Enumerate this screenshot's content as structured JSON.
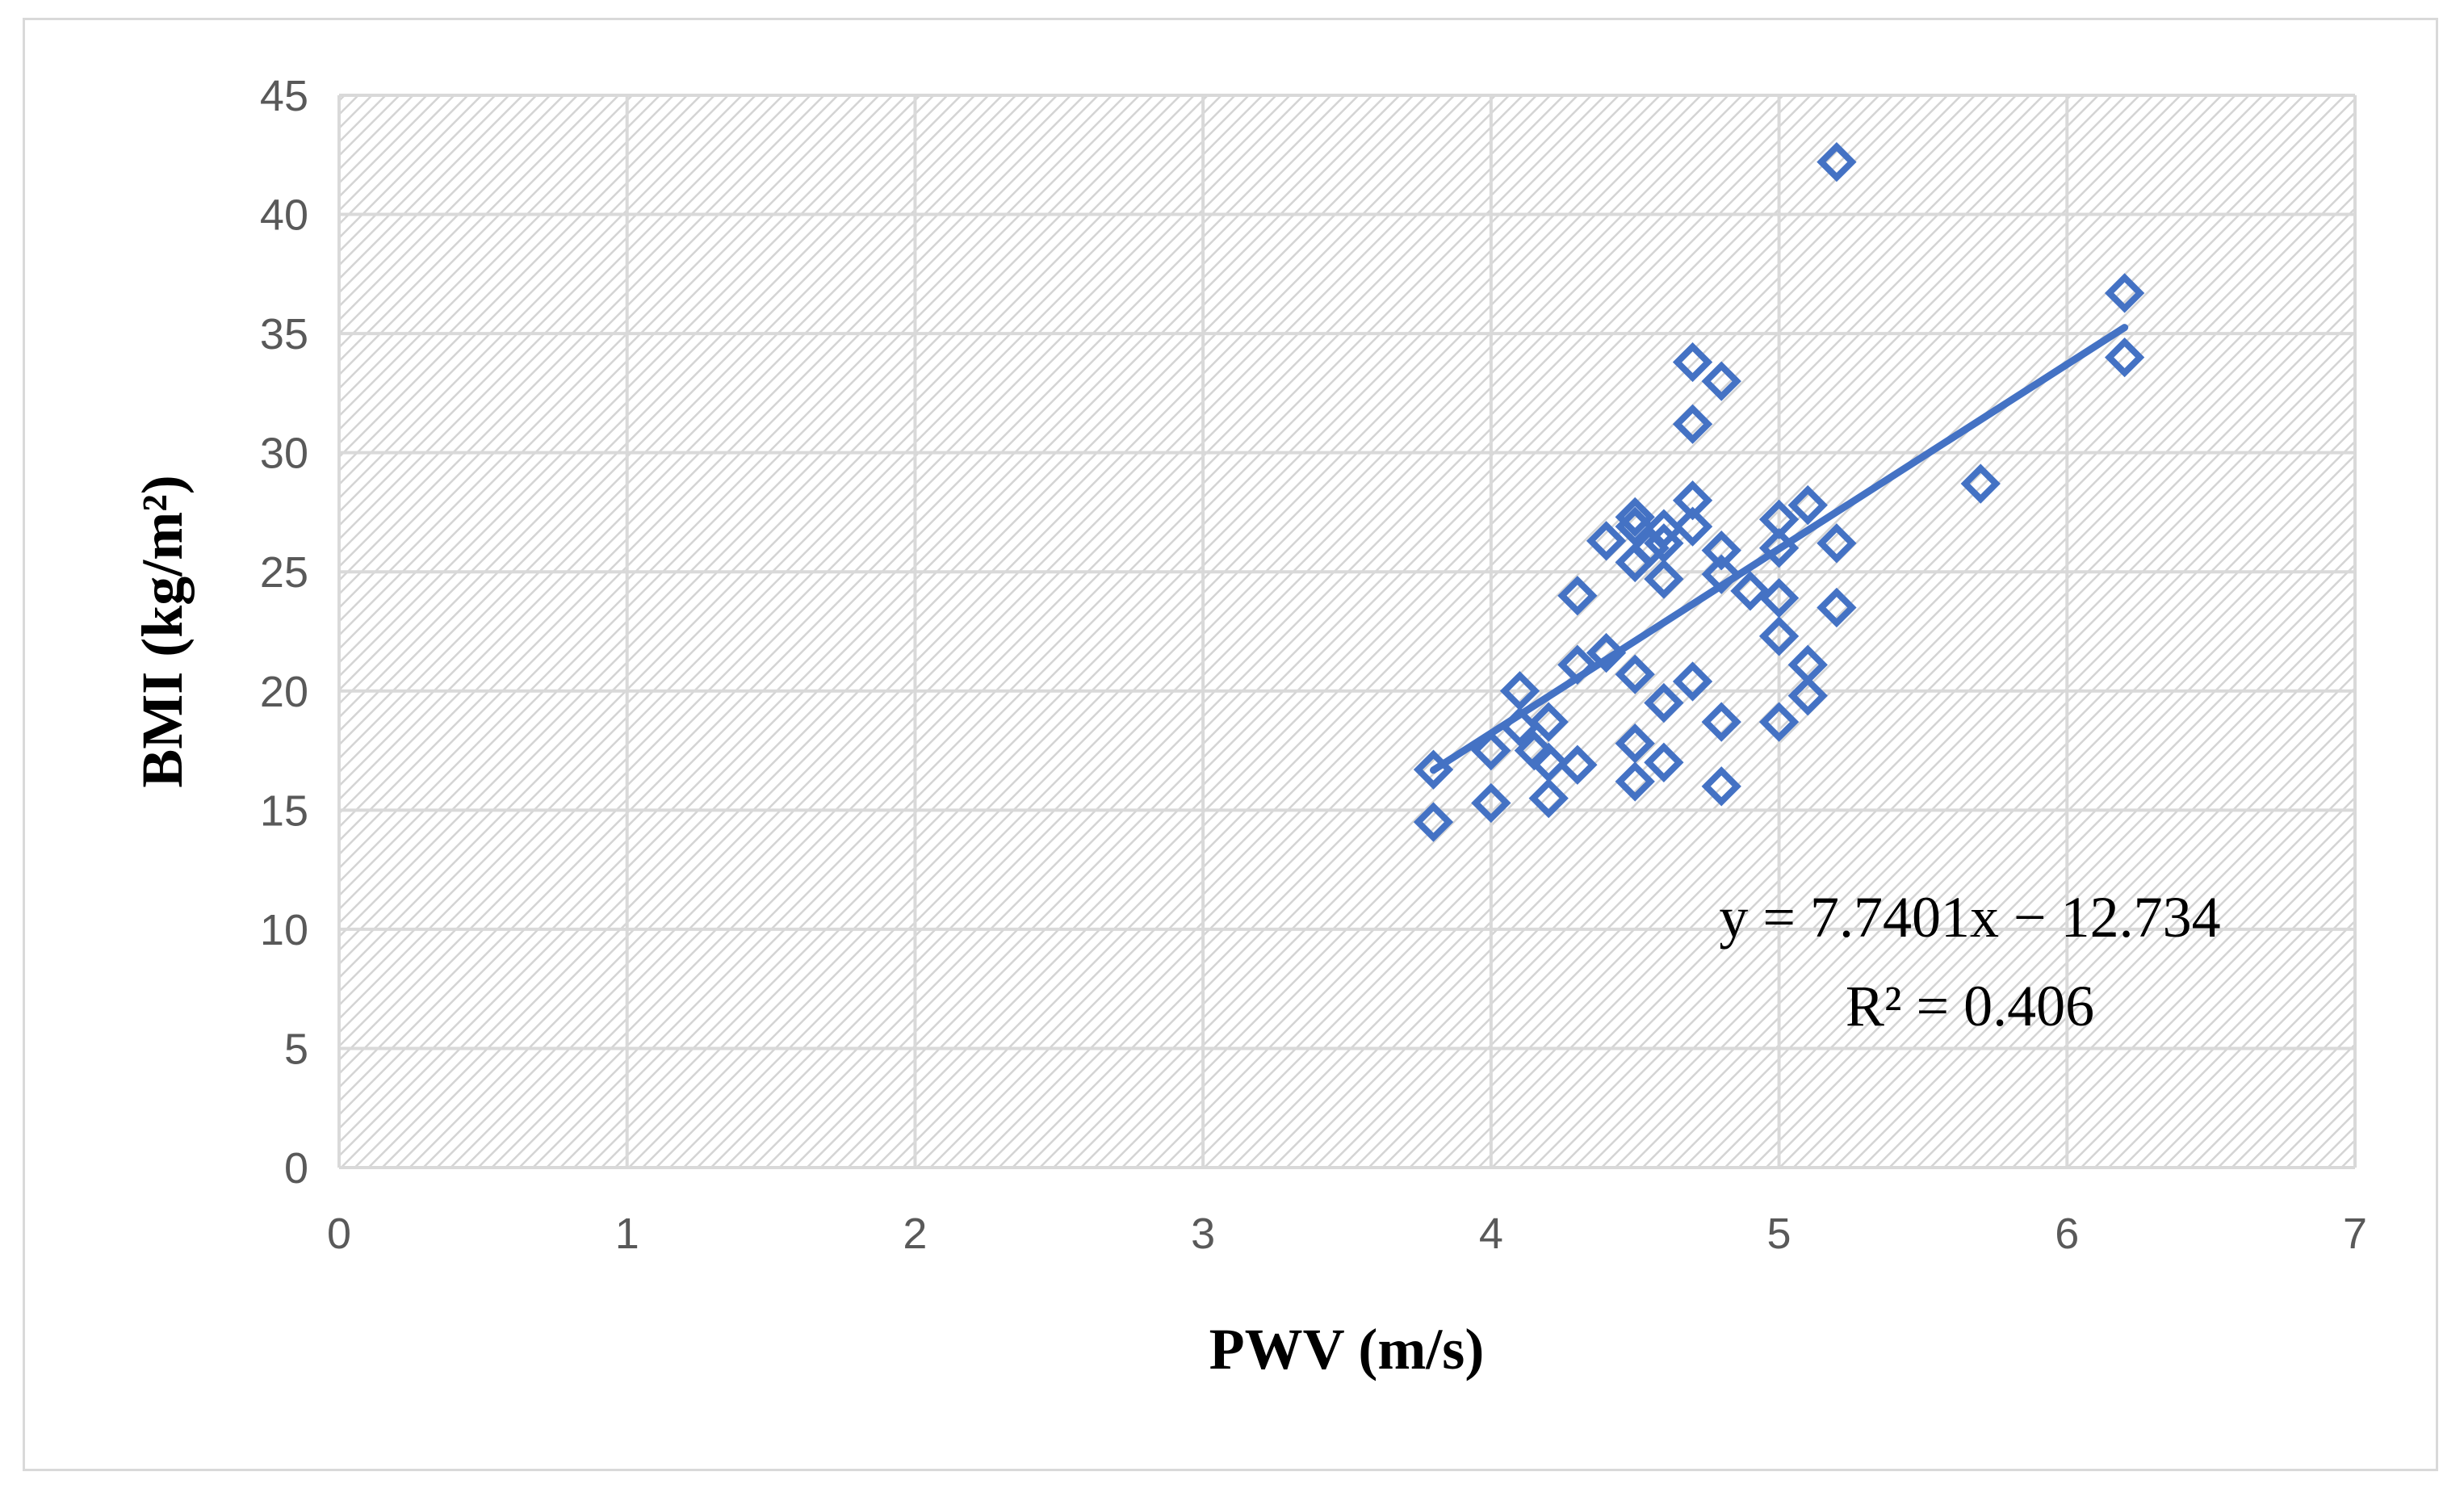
{
  "chart_data": {
    "type": "scatter",
    "xlabel": "PWV (m/s)",
    "ylabel": "BMI (kg/m²)",
    "xlim": [
      0,
      7
    ],
    "ylim": [
      0,
      45
    ],
    "x_ticks": [
      "0",
      "1",
      "2",
      "3",
      "4",
      "5",
      "6",
      "7"
    ],
    "y_ticks": [
      "0",
      "5",
      "10",
      "15",
      "20",
      "25",
      "30",
      "35",
      "40",
      "45"
    ],
    "grid": true,
    "legend": "none",
    "marker": "diamond-open",
    "series_color": "#4472c4",
    "points": [
      [
        3.8,
        16.7
      ],
      [
        3.8,
        14.5
      ],
      [
        4.0,
        17.5
      ],
      [
        4.0,
        15.3
      ],
      [
        4.1,
        20.0
      ],
      [
        4.1,
        18.5
      ],
      [
        4.15,
        17.5
      ],
      [
        4.2,
        18.7
      ],
      [
        4.2,
        17.0
      ],
      [
        4.2,
        15.5
      ],
      [
        4.3,
        24.0
      ],
      [
        4.3,
        21.1
      ],
      [
        4.3,
        16.9
      ],
      [
        4.4,
        26.3
      ],
      [
        4.4,
        21.6
      ],
      [
        4.5,
        27.3
      ],
      [
        4.5,
        26.9
      ],
      [
        4.5,
        25.4
      ],
      [
        4.5,
        20.7
      ],
      [
        4.5,
        17.8
      ],
      [
        4.5,
        16.2
      ],
      [
        4.55,
        26.0
      ],
      [
        4.6,
        26.8
      ],
      [
        4.6,
        26.2
      ],
      [
        4.6,
        24.7
      ],
      [
        4.6,
        19.5
      ],
      [
        4.6,
        17.0
      ],
      [
        4.7,
        33.8
      ],
      [
        4.7,
        31.2
      ],
      [
        4.7,
        28.0
      ],
      [
        4.7,
        26.9
      ],
      [
        4.7,
        20.4
      ],
      [
        4.8,
        33.0
      ],
      [
        4.8,
        25.9
      ],
      [
        4.8,
        24.9
      ],
      [
        4.8,
        18.7
      ],
      [
        4.8,
        16.0
      ],
      [
        4.9,
        24.2
      ],
      [
        5.0,
        27.2
      ],
      [
        5.0,
        26.0
      ],
      [
        5.0,
        23.9
      ],
      [
        5.0,
        22.3
      ],
      [
        5.0,
        18.7
      ],
      [
        5.1,
        27.8
      ],
      [
        5.1,
        21.1
      ],
      [
        5.1,
        19.8
      ],
      [
        5.2,
        42.2
      ],
      [
        5.2,
        26.2
      ],
      [
        5.2,
        23.5
      ],
      [
        5.7,
        28.7
      ],
      [
        6.2,
        36.7
      ],
      [
        6.2,
        34.0
      ]
    ],
    "trendline": {
      "slope": 7.7401,
      "intercept": -12.734,
      "x_range": [
        3.8,
        6.2
      ],
      "equation_label": "y = 7.7401x − 12.734",
      "r2_label": "R² = 0.406"
    }
  }
}
